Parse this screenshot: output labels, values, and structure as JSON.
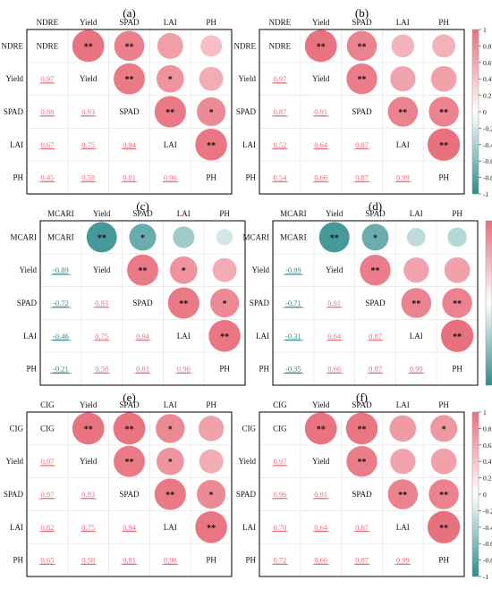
{
  "colorbar": {
    "ticks": [
      1,
      0.8,
      0.6,
      0.4,
      0.2,
      0,
      -0.2,
      -0.4,
      -0.6,
      -0.8,
      -1
    ],
    "pos_color": "#e8707d",
    "neg_color": "#2f8c8c",
    "mid_color": "#ffffff"
  },
  "chart_data": [
    {
      "type": "heatmap",
      "panel_label": "(a)",
      "variables": [
        "NDRE",
        "Yield",
        "SPAD",
        "LAI",
        "PH"
      ],
      "upper_significance": [
        [
          "",
          "**",
          "**",
          "",
          ""
        ],
        [
          "",
          "",
          "**",
          "*",
          ""
        ],
        [
          "",
          "",
          "",
          "**",
          "*"
        ],
        [
          "",
          "",
          "",
          "",
          "**"
        ],
        [
          "",
          "",
          "",
          "",
          ""
        ]
      ],
      "lower_values": [
        [],
        [
          "0.97"
        ],
        [
          "0.88",
          "0.93"
        ],
        [
          "0.67",
          "0.75",
          "0.94"
        ],
        [
          "0.45",
          "0.58",
          "0.81",
          "0.96"
        ]
      ]
    },
    {
      "type": "heatmap",
      "panel_label": "(b)",
      "variables": [
        "NDRE",
        "Yield",
        "SPAD",
        "LAI",
        "PH"
      ],
      "upper_significance": [
        [
          "",
          "**",
          "**",
          "",
          ""
        ],
        [
          "",
          "",
          "**",
          "",
          ""
        ],
        [
          "",
          "",
          "",
          "**",
          "**"
        ],
        [
          "",
          "",
          "",
          "",
          "**"
        ],
        [
          "",
          "",
          "",
          "",
          ""
        ]
      ],
      "lower_values": [
        [],
        [
          "0.97"
        ],
        [
          "0.87",
          "0.91"
        ],
        [
          "0.52",
          "0.64",
          "0.87"
        ],
        [
          "0.54",
          "0.66",
          "0.87",
          "0.99"
        ]
      ]
    },
    {
      "type": "heatmap",
      "panel_label": "(c)",
      "variables": [
        "MCARI",
        "Yield",
        "SPAD",
        "LAI",
        "PH"
      ],
      "upper_significance": [
        [
          "",
          "**",
          "*",
          "",
          ""
        ],
        [
          "",
          "",
          "**",
          "*",
          ""
        ],
        [
          "",
          "",
          "",
          "**",
          "*"
        ],
        [
          "",
          "",
          "",
          "",
          "**"
        ],
        [
          "",
          "",
          "",
          "",
          ""
        ]
      ],
      "lower_values": [
        [],
        [
          "-0.89"
        ],
        [
          "-0.72",
          "0.93"
        ],
        [
          "-0.46",
          "0.75",
          "0.94"
        ],
        [
          "-0.21",
          "0.58",
          "0.81",
          "0.96"
        ]
      ]
    },
    {
      "type": "heatmap",
      "panel_label": "(d)",
      "variables": [
        "MCARI",
        "Yield",
        "SPAD",
        "LAI",
        "PH"
      ],
      "upper_significance": [
        [
          "",
          "**",
          "*",
          "",
          ""
        ],
        [
          "",
          "",
          "**",
          "",
          ""
        ],
        [
          "",
          "",
          "",
          "**",
          "**"
        ],
        [
          "",
          "",
          "",
          "",
          "**"
        ],
        [
          "",
          "",
          "",
          "",
          ""
        ]
      ],
      "lower_values": [
        [],
        [
          "-0.89"
        ],
        [
          "-0.71",
          "0.91"
        ],
        [
          "-0.31",
          "0.64",
          "0.87"
        ],
        [
          "-0.35",
          "0.66",
          "0.87",
          "0.99"
        ]
      ]
    },
    {
      "type": "heatmap",
      "panel_label": "(e)",
      "variables": [
        "CIG",
        "Yield",
        "SPAD",
        "LAI",
        "PH"
      ],
      "upper_significance": [
        [
          "",
          "**",
          "**",
          "*",
          ""
        ],
        [
          "",
          "",
          "**",
          "*",
          ""
        ],
        [
          "",
          "",
          "",
          "**",
          "*"
        ],
        [
          "",
          "",
          "",
          "",
          "**"
        ],
        [
          "",
          "",
          "",
          "",
          ""
        ]
      ],
      "lower_values": [
        [],
        [
          "0.97"
        ],
        [
          "0.97",
          "0.93"
        ],
        [
          "0.82",
          "0.75",
          "0.94"
        ],
        [
          "0.65",
          "0.58",
          "0.81",
          "0.96"
        ]
      ]
    },
    {
      "type": "heatmap",
      "panel_label": "(f)",
      "variables": [
        "CIG",
        "Yield",
        "SPAD",
        "LAI",
        "PH"
      ],
      "upper_significance": [
        [
          "",
          "**",
          "**",
          "",
          "*"
        ],
        [
          "",
          "",
          "**",
          "",
          ""
        ],
        [
          "",
          "",
          "",
          "**",
          "**"
        ],
        [
          "",
          "",
          "",
          "",
          "**"
        ],
        [
          "",
          "",
          "",
          "",
          ""
        ]
      ],
      "lower_values": [
        [],
        [
          "0.97"
        ],
        [
          "0.96",
          "0.91"
        ],
        [
          "0.70",
          "0.64",
          "0.87"
        ],
        [
          "0.72",
          "0.66",
          "0.87",
          "0.99"
        ]
      ]
    }
  ]
}
